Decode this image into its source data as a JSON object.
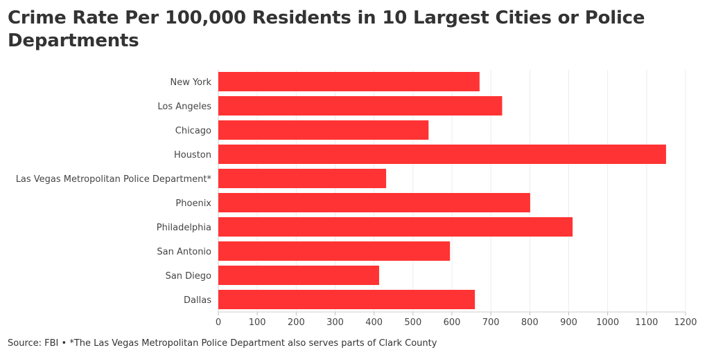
{
  "chart_data": {
    "type": "bar",
    "orientation": "horizontal",
    "title": "Crime Rate Per 100,000 Residents in 10 Largest Cities or Police Departments",
    "categories": [
      "New York",
      "Los Angeles",
      "Chicago",
      "Houston",
      "Las Vegas Metropolitan Police Department*",
      "Phoenix",
      "Philadelphia",
      "San Antonio",
      "San Diego",
      "Dallas"
    ],
    "values": [
      671,
      729,
      540,
      1150,
      431,
      801,
      910,
      595,
      413,
      659
    ],
    "xlim": [
      0,
      1200
    ],
    "xticks": [
      "0",
      "100",
      "200",
      "300",
      "400",
      "500",
      "600",
      "700",
      "800",
      "900",
      "1000",
      "1100",
      "1200"
    ],
    "bar_color": "#ff3333",
    "grid": true
  },
  "footer": {
    "source": "Source: FBI • *The Las Vegas Metropolitan Police Department also serves parts of Clark County"
  }
}
